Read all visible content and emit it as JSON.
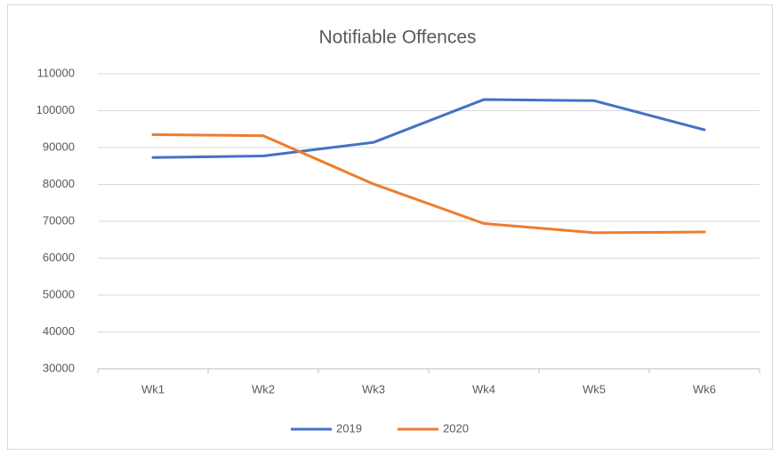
{
  "chart_data": {
    "type": "line",
    "title": "Notifiable Offences",
    "categories": [
      "Wk1",
      "Wk2",
      "Wk3",
      "Wk4",
      "Wk5",
      "Wk6"
    ],
    "series": [
      {
        "name": "2019",
        "color": "#4472c4",
        "values": [
          87300,
          87700,
          91400,
          103000,
          102700,
          94800
        ]
      },
      {
        "name": "2020",
        "color": "#ed7d31",
        "values": [
          93500,
          93200,
          80100,
          69400,
          66900,
          67100
        ]
      }
    ],
    "ylim": [
      30000,
      110000
    ],
    "yticks": [
      30000,
      40000,
      50000,
      60000,
      70000,
      80000,
      90000,
      100000,
      110000
    ],
    "grid": true,
    "legend": "bottom"
  }
}
